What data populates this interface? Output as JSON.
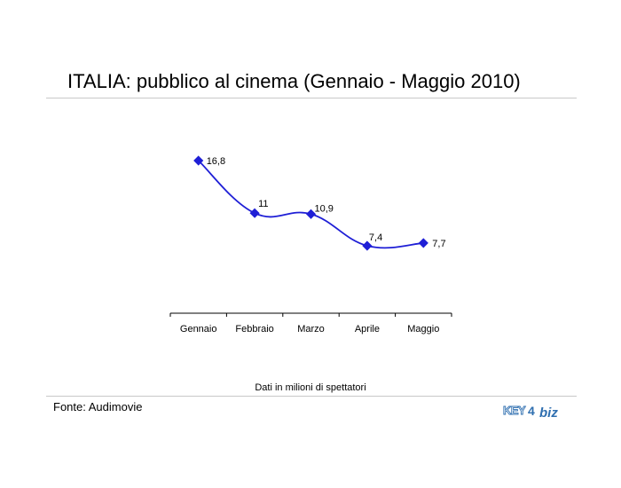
{
  "title": "ITALIA: pubblico al cinema (Gennaio - Maggio 2010)",
  "note": "Dati in milioni di spettatori",
  "source": "Fonte: Audimovie",
  "logo_text": "KEY4biz",
  "colors": {
    "series": "#1f1fd6",
    "rule": "#c8c8c8",
    "logo_blue": "#2f6fb0"
  },
  "chart_data": {
    "type": "line",
    "categories": [
      "Gennaio",
      "Febbraio",
      "Marzo",
      "Aprile",
      "Maggio"
    ],
    "series": [
      {
        "values": [
          16.8,
          11,
          10.9,
          7.4,
          7.7
        ],
        "labels": [
          "16,8",
          "11",
          "10,9",
          "7,4",
          "7,7"
        ]
      }
    ],
    "title": "ITALIA: pubblico al cinema (Gennaio - Maggio 2010)",
    "xlabel": "",
    "ylabel": "",
    "ylim": [
      0,
      18
    ],
    "grid": false,
    "smooth": true,
    "marker": "diamond",
    "legend": "none"
  }
}
